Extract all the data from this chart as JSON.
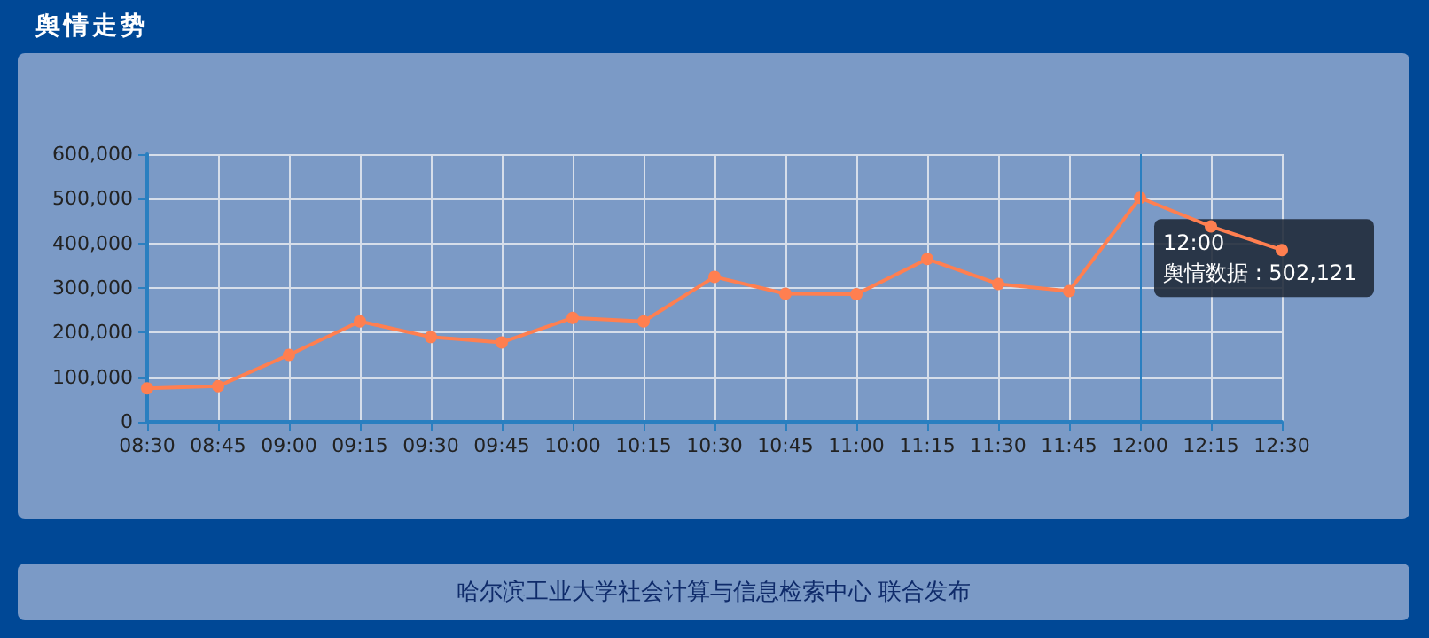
{
  "chart_data": {
    "type": "line",
    "title": "舆情走势",
    "x": [
      8.5,
      8.75,
      9,
      9.25,
      9.5,
      9.75,
      10,
      10.25,
      10.5,
      10.75,
      11,
      11.25,
      11.5,
      11.75,
      12,
      12.25,
      12.5
    ],
    "series": [
      {
        "color": "#ff7f50",
        "values": [
          75000,
          80000,
          150000,
          225000,
          190000,
          178000,
          233000,
          225000,
          325000,
          287000,
          286000,
          365000,
          309000,
          293000,
          502121,
          438000,
          385000
        ]
      }
    ],
    "xlim": [
      8.5,
      12.5
    ],
    "xticks": [
      {
        "value": 8.5,
        "label": "08:30"
      },
      {
        "value": 8.75,
        "label": "08:45"
      },
      {
        "value": 9,
        "label": "09:00"
      },
      {
        "value": 9.25,
        "label": "09:15"
      },
      {
        "value": 9.5,
        "label": "09:30"
      },
      {
        "value": 9.75,
        "label": "09:45"
      },
      {
        "value": 10,
        "label": "10:00"
      },
      {
        "value": 10.25,
        "label": "10:15"
      },
      {
        "value": 10.5,
        "label": "10:30"
      },
      {
        "value": 10.75,
        "label": "10:45"
      },
      {
        "value": 11,
        "label": "11:00"
      },
      {
        "value": 11.25,
        "label": "11:15"
      },
      {
        "value": 11.5,
        "label": "11:30"
      },
      {
        "value": 11.75,
        "label": "11:45"
      },
      {
        "value": 12,
        "label": "12:00"
      },
      {
        "value": 12.25,
        "label": "12:15"
      },
      {
        "value": 12.5,
        "label": "12:30"
      }
    ],
    "ylim": [
      0,
      600000
    ],
    "yticks": [
      {
        "value": 0,
        "label": "0"
      },
      {
        "value": 100000,
        "label": "100,000"
      },
      {
        "value": 200000,
        "label": "200,000"
      },
      {
        "value": 300000,
        "label": "300,000"
      },
      {
        "value": 400000,
        "label": "400,000"
      },
      {
        "value": 500000,
        "label": "500,000"
      },
      {
        "value": 600000,
        "label": "600,000"
      }
    ],
    "ref_lines": [
      {
        "axis": "x",
        "value": 12,
        "color": "#2a7fc0"
      }
    ],
    "annotations": [
      {
        "text": "12:00\n舆情数据 : 502,121",
        "x": 12,
        "y": 502121
      },
      "哈尔滨工业大学社会计算与信息检索中心 联合发布"
    ],
    "grid": true,
    "marker": "circle",
    "line_style": "solid"
  }
}
